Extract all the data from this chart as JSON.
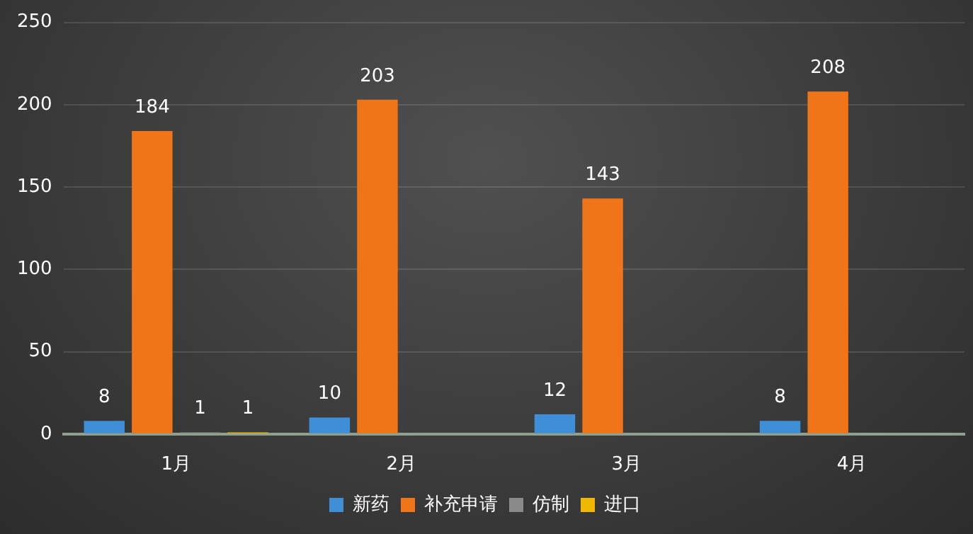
{
  "chart_data": {
    "type": "bar",
    "categories": [
      "1月",
      "2月",
      "3月",
      "4月"
    ],
    "series": [
      {
        "name": "新药",
        "color": "#3e8ed8",
        "values": [
          8,
          10,
          12,
          8
        ],
        "value_labels": [
          "8",
          "10",
          "12",
          "8"
        ]
      },
      {
        "name": "补充申请",
        "color": "#f07418",
        "values": [
          184,
          203,
          143,
          208
        ],
        "value_labels": [
          "184",
          "203",
          "143",
          "208"
        ]
      },
      {
        "name": "仿制",
        "color": "#8a8a8a",
        "values": [
          1,
          null,
          null,
          null
        ],
        "value_labels": [
          "1",
          null,
          null,
          null
        ]
      },
      {
        "name": "进口",
        "color": "#f0b800",
        "values": [
          1,
          null,
          null,
          null
        ],
        "value_labels": [
          "1",
          null,
          null,
          null
        ]
      }
    ],
    "ylim": [
      0,
      250
    ],
    "yticks": [
      0,
      50,
      100,
      150,
      200,
      250
    ],
    "grid": "y",
    "legend": "bottom"
  }
}
